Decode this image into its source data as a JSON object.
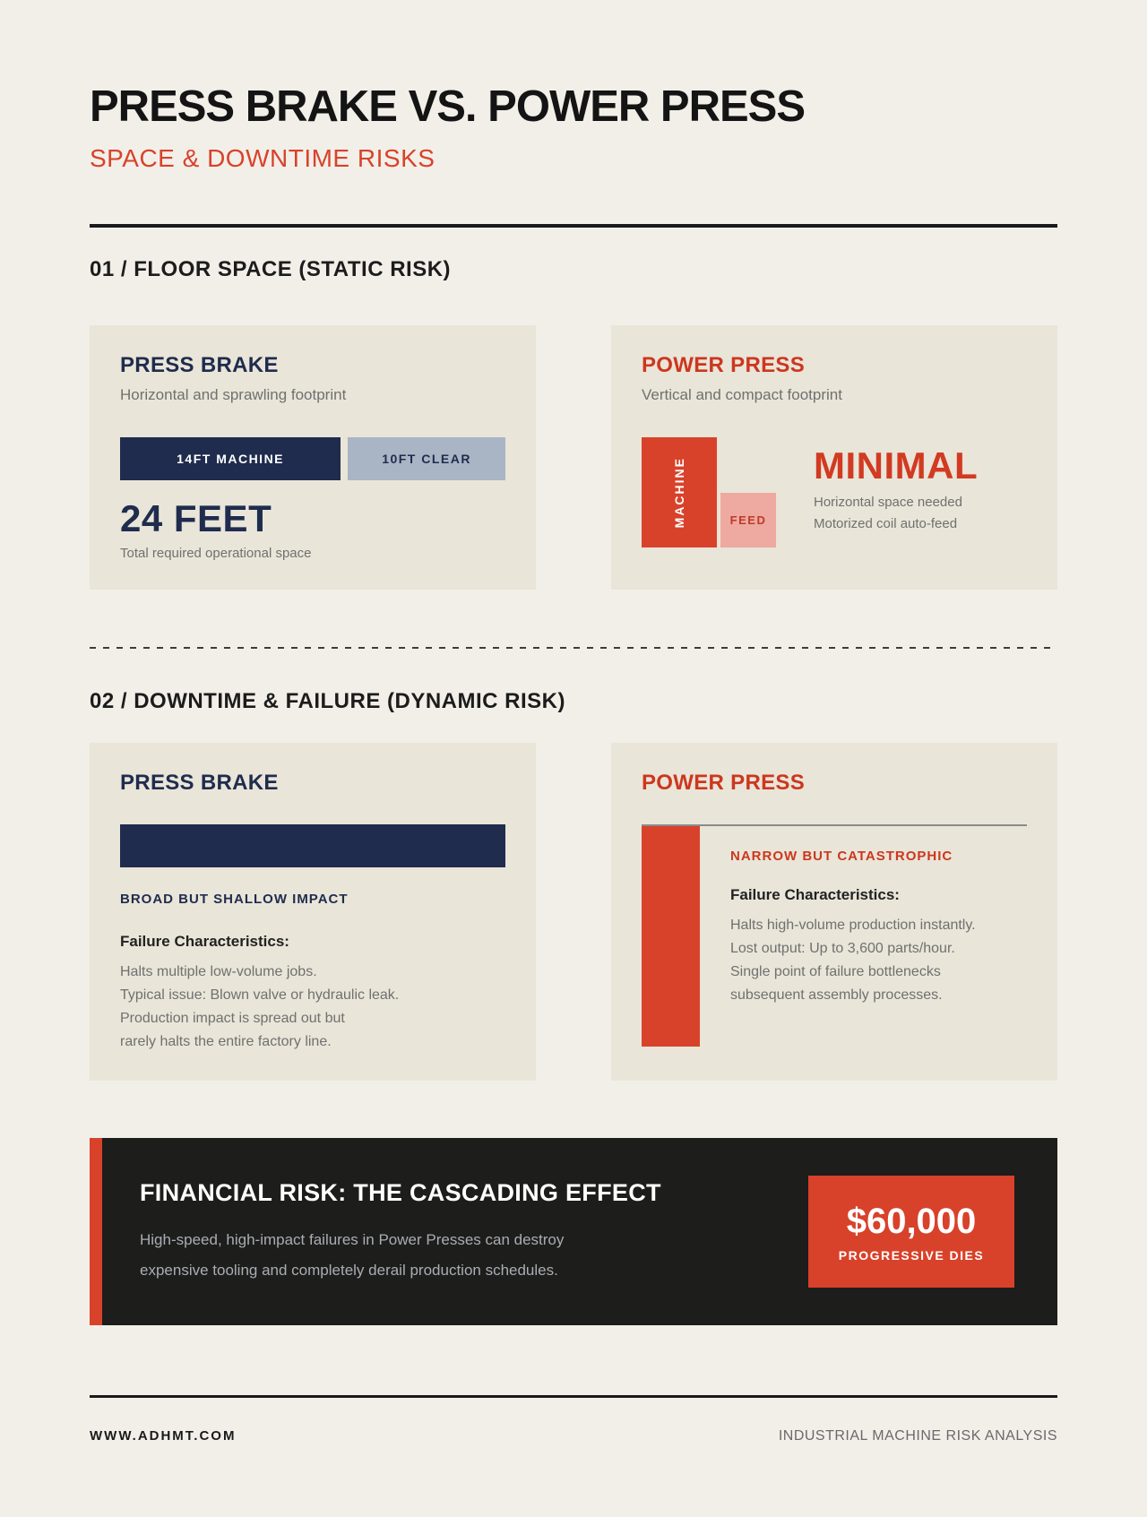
{
  "header": {
    "title": "PRESS BRAKE VS. POWER PRESS",
    "subtitle": "SPACE & DOWNTIME RISKS"
  },
  "section1": {
    "heading": "01 / FLOOR SPACE (STATIC RISK)",
    "press_brake": {
      "title": "PRESS BRAKE",
      "description": "Horizontal and sprawling footprint",
      "bar_machine_label": "14FT MACHINE",
      "bar_clear_label": "10FT CLEAR",
      "total_value": "24 FEET",
      "total_caption": "Total required operational space"
    },
    "power_press": {
      "title": "POWER PRESS",
      "description": "Vertical and compact footprint",
      "machine_bar_label": "MACHINE",
      "feed_bar_label": "FEED",
      "value": "MINIMAL",
      "caption_line1": "Horizontal space needed",
      "caption_line2": "Motorized coil auto-feed"
    }
  },
  "section2": {
    "heading": "02 / DOWNTIME & FAILURE (DYNAMIC RISK)",
    "press_brake": {
      "title": "PRESS BRAKE",
      "impact_label": "BROAD BUT SHALLOW IMPACT",
      "failure_heading": "Failure Characteristics:",
      "lines": [
        "Halts multiple low-volume jobs.",
        "Typical issue: Blown valve or hydraulic leak.",
        "Production impact is spread out but",
        "rarely halts the entire factory line."
      ]
    },
    "power_press": {
      "title": "POWER PRESS",
      "impact_label": "NARROW BUT CATASTROPHIC",
      "failure_heading": "Failure Characteristics:",
      "lines": [
        "Halts high-volume production instantly.",
        "Lost output: Up to 3,600 parts/hour.",
        "Single point of failure bottlenecks",
        "subsequent assembly processes."
      ]
    }
  },
  "banner": {
    "title": "FINANCIAL RISK: THE CASCADING EFFECT",
    "body_line1": "High-speed, high-impact failures in Power Presses can destroy",
    "body_line2": "expensive tooling and completely derail production schedules.",
    "amount": "$60,000",
    "amount_caption": "PROGRESSIVE DIES"
  },
  "footer": {
    "left": "WWW.ADHMT.COM",
    "right": "INDUSTRIAL MACHINE RISK ANALYSIS"
  },
  "colors": {
    "page_background": "#f2efe9",
    "card_background": "#e9e5d8",
    "navy": "#1f2c4e",
    "steel_blue": "#a9b5c4",
    "accent_red": "#d8422a",
    "pink": "#eea9a1",
    "banner_background": "#1d1d1b",
    "body_gray": "#707070"
  },
  "chart_data": [
    {
      "type": "bar",
      "title": "Floor space (static risk) — Press Brake",
      "categories": [
        "14FT MACHINE",
        "10FT CLEAR"
      ],
      "values": [
        14,
        10
      ],
      "unit": "feet",
      "total": 24,
      "annotation": "24 FEET total required operational space",
      "orientation": "horizontal-stacked"
    },
    {
      "type": "bar",
      "title": "Floor space (static risk) — Power Press",
      "categories": [
        "MACHINE",
        "FEED"
      ],
      "values": [
        123,
        61
      ],
      "unit": "relative-height-px",
      "annotation": "MINIMAL horizontal space needed; motorized coil auto-feed",
      "orientation": "vertical"
    },
    {
      "type": "bar",
      "title": "Downtime & failure (dynamic risk) — Press Brake",
      "categories": [
        "Impact profile"
      ],
      "values": [
        48
      ],
      "unit": "relative-height-px",
      "annotation": "Broad but shallow impact (wide, short bar)",
      "orientation": "horizontal"
    },
    {
      "type": "bar",
      "title": "Downtime & failure (dynamic risk) — Power Press",
      "categories": [
        "Impact profile"
      ],
      "values": [
        246
      ],
      "unit": "relative-height-px",
      "annotation": "Narrow but catastrophic (narrow, tall bar); up to 3,600 parts/hour lost",
      "orientation": "vertical"
    }
  ]
}
